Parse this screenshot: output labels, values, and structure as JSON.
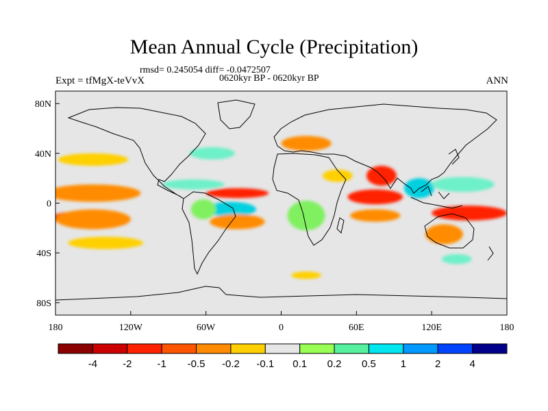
{
  "title": "Mean Annual Cycle (Precipitation)",
  "stats": "rmsd= 0.245054 diff= -0.0472507",
  "subtitle": "0620kyr BP - 0620kyr BP",
  "expt_label": "Expt = tfMgX-teVvX",
  "season": "ANN",
  "map": {
    "lon_ticks": [
      {
        "lon": -180,
        "label": "180"
      },
      {
        "lon": -120,
        "label": "120W"
      },
      {
        "lon": -60,
        "label": "60W"
      },
      {
        "lon": 0,
        "label": "0"
      },
      {
        "lon": 60,
        "label": "60E"
      },
      {
        "lon": 120,
        "label": "120E"
      },
      {
        "lon": 180,
        "label": "180"
      }
    ],
    "lat_ticks": [
      {
        "lat": 80,
        "label": "80N"
      },
      {
        "lat": 40,
        "label": "40N"
      },
      {
        "lat": 0,
        "label": "0"
      },
      {
        "lat": -40,
        "label": "40S"
      },
      {
        "lat": -80,
        "label": "80S"
      }
    ],
    "lat_range": [
      -90,
      90
    ],
    "lon_range": [
      -180,
      180
    ],
    "background_color": "#e6e6e6",
    "anomaly_regions": [
      {
        "name": "eq-pacific-north-dry",
        "lon": -150,
        "lat": 8,
        "rx": 32,
        "ry": 4,
        "color": "#ff2200"
      },
      {
        "name": "eq-pacific-north-mod",
        "lon": -150,
        "lat": 8,
        "rx": 38,
        "ry": 7,
        "color": "#ff8c00"
      },
      {
        "name": "eq-pacific-south-dry",
        "lon": -165,
        "lat": -12,
        "rx": 18,
        "ry": 5,
        "color": "#ff2200"
      },
      {
        "name": "eq-pacific-south-mod",
        "lon": -150,
        "lat": -13,
        "rx": 30,
        "ry": 8,
        "color": "#ff8c00"
      },
      {
        "name": "n-pacific-light",
        "lon": -150,
        "lat": 35,
        "rx": 28,
        "ry": 5,
        "color": "#ffd000"
      },
      {
        "name": "s-pacific-light",
        "lon": -140,
        "lat": -32,
        "rx": 30,
        "ry": 5,
        "color": "#ffd000"
      },
      {
        "name": "carib-wet",
        "lon": -70,
        "lat": 15,
        "rx": 25,
        "ry": 4,
        "color": "#6ef0c8"
      },
      {
        "name": "atlantic-itcz-dry",
        "lon": -35,
        "lat": 8,
        "rx": 25,
        "ry": 4,
        "color": "#ff2200"
      },
      {
        "name": "atlantic-wet",
        "lon": -40,
        "lat": -5,
        "rx": 20,
        "ry": 6,
        "color": "#00d0e0"
      },
      {
        "name": "s-atlantic-dry",
        "lon": -35,
        "lat": -15,
        "rx": 22,
        "ry": 6,
        "color": "#ff8c00"
      },
      {
        "name": "n-atlantic-wet",
        "lon": -55,
        "lat": 40,
        "rx": 18,
        "ry": 5,
        "color": "#6ef0c8"
      },
      {
        "name": "amazon-wet",
        "lon": -62,
        "lat": -5,
        "rx": 10,
        "ry": 8,
        "color": "#80f060"
      },
      {
        "name": "europe-dry",
        "lon": 20,
        "lat": 48,
        "rx": 20,
        "ry": 6,
        "color": "#ff8c00"
      },
      {
        "name": "africa-wet",
        "lon": 20,
        "lat": -10,
        "rx": 15,
        "ry": 12,
        "color": "#80f060"
      },
      {
        "name": "arabia-dry",
        "lon": 45,
        "lat": 22,
        "rx": 12,
        "ry": 5,
        "color": "#ffd000"
      },
      {
        "name": "indian-ocean-dry",
        "lon": 75,
        "lat": 5,
        "rx": 22,
        "ry": 6,
        "color": "#ff2200"
      },
      {
        "name": "indian-ocean-south-dry",
        "lon": 75,
        "lat": -10,
        "rx": 20,
        "ry": 5,
        "color": "#ff8c00"
      },
      {
        "name": "india-dry",
        "lon": 80,
        "lat": 22,
        "rx": 12,
        "ry": 8,
        "color": "#ff2200"
      },
      {
        "name": "se-asia-wet",
        "lon": 110,
        "lat": 12,
        "rx": 12,
        "ry": 8,
        "color": "#00d0e0"
      },
      {
        "name": "w-pacific-wet",
        "lon": 145,
        "lat": 15,
        "rx": 25,
        "ry": 6,
        "color": "#6ef0c8"
      },
      {
        "name": "w-pacific-dry",
        "lon": 150,
        "lat": -8,
        "rx": 30,
        "ry": 6,
        "color": "#ff2200"
      },
      {
        "name": "australia-dry",
        "lon": 130,
        "lat": -25,
        "rx": 15,
        "ry": 8,
        "color": "#ff8c00"
      },
      {
        "name": "s-ocean-wet",
        "lon": 140,
        "lat": -45,
        "rx": 12,
        "ry": 4,
        "color": "#6ef0c8"
      },
      {
        "name": "antarctic-dry",
        "lon": 20,
        "lat": -58,
        "rx": 12,
        "ry": 3,
        "color": "#ffd000"
      }
    ]
  },
  "colorbar": {
    "colors": [
      "#8b0000",
      "#cc0000",
      "#ff2200",
      "#ff5500",
      "#ff8c00",
      "#ffd000",
      "#e6e6e6",
      "#99ff55",
      "#55f0a0",
      "#00e5ee",
      "#0099ff",
      "#0044ff",
      "#00008b"
    ],
    "labels": [
      "-4",
      "-2",
      "-1",
      "-0.5",
      "-0.2",
      "-0.1",
      "0.1",
      "0.2",
      "0.5",
      "1",
      "2",
      "4"
    ]
  }
}
